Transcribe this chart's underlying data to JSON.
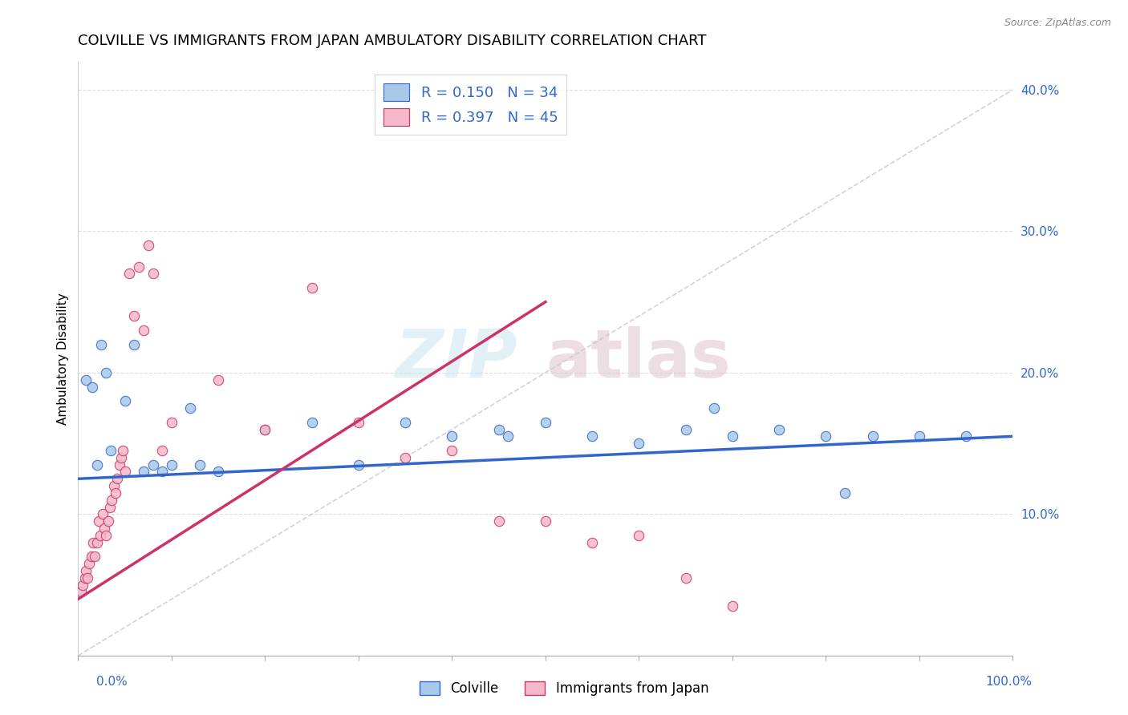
{
  "title": "COLVILLE VS IMMIGRANTS FROM JAPAN AMBULATORY DISABILITY CORRELATION CHART",
  "source": "Source: ZipAtlas.com",
  "ylabel": "Ambulatory Disability",
  "legend_label1": "Colville",
  "legend_label2": "Immigrants from Japan",
  "R1": 0.15,
  "N1": 34,
  "R2": 0.397,
  "N2": 45,
  "color_blue": "#a8c8e8",
  "color_pink": "#f4b8c8",
  "color_blue_line": "#3366cc",
  "color_pink_line": "#cc3366",
  "color_dashed_line": "#cccccc",
  "watermark_zip": "ZIP",
  "watermark_atlas": "atlas",
  "blue_points": [
    [
      0.8,
      19.5
    ],
    [
      1.5,
      19.0
    ],
    [
      2.0,
      13.5
    ],
    [
      2.5,
      22.0
    ],
    [
      3.0,
      20.0
    ],
    [
      3.5,
      14.5
    ],
    [
      5.0,
      18.0
    ],
    [
      6.0,
      22.0
    ],
    [
      7.0,
      13.0
    ],
    [
      8.0,
      13.5
    ],
    [
      9.0,
      13.0
    ],
    [
      10.0,
      13.5
    ],
    [
      12.0,
      17.5
    ],
    [
      13.0,
      13.5
    ],
    [
      15.0,
      13.0
    ],
    [
      20.0,
      16.0
    ],
    [
      25.0,
      16.5
    ],
    [
      30.0,
      13.5
    ],
    [
      35.0,
      16.5
    ],
    [
      40.0,
      15.5
    ],
    [
      45.0,
      16.0
    ],
    [
      46.0,
      15.5
    ],
    [
      50.0,
      16.5
    ],
    [
      55.0,
      15.5
    ],
    [
      60.0,
      15.0
    ],
    [
      65.0,
      16.0
    ],
    [
      68.0,
      17.5
    ],
    [
      70.0,
      15.5
    ],
    [
      75.0,
      16.0
    ],
    [
      80.0,
      15.5
    ],
    [
      82.0,
      11.5
    ],
    [
      85.0,
      15.5
    ],
    [
      90.0,
      15.5
    ],
    [
      95.0,
      15.5
    ]
  ],
  "pink_points": [
    [
      0.3,
      4.5
    ],
    [
      0.5,
      5.0
    ],
    [
      0.7,
      5.5
    ],
    [
      0.8,
      6.0
    ],
    [
      1.0,
      5.5
    ],
    [
      1.2,
      6.5
    ],
    [
      1.4,
      7.0
    ],
    [
      1.6,
      8.0
    ],
    [
      1.8,
      7.0
    ],
    [
      2.0,
      8.0
    ],
    [
      2.2,
      9.5
    ],
    [
      2.4,
      8.5
    ],
    [
      2.6,
      10.0
    ],
    [
      2.8,
      9.0
    ],
    [
      3.0,
      8.5
    ],
    [
      3.2,
      9.5
    ],
    [
      3.4,
      10.5
    ],
    [
      3.6,
      11.0
    ],
    [
      3.8,
      12.0
    ],
    [
      4.0,
      11.5
    ],
    [
      4.2,
      12.5
    ],
    [
      4.4,
      13.5
    ],
    [
      4.6,
      14.0
    ],
    [
      4.8,
      14.5
    ],
    [
      5.0,
      13.0
    ],
    [
      5.5,
      27.0
    ],
    [
      6.0,
      24.0
    ],
    [
      6.5,
      27.5
    ],
    [
      7.0,
      23.0
    ],
    [
      7.5,
      29.0
    ],
    [
      8.0,
      27.0
    ],
    [
      9.0,
      14.5
    ],
    [
      10.0,
      16.5
    ],
    [
      15.0,
      19.5
    ],
    [
      20.0,
      16.0
    ],
    [
      25.0,
      26.0
    ],
    [
      30.0,
      16.5
    ],
    [
      35.0,
      14.0
    ],
    [
      40.0,
      14.5
    ],
    [
      45.0,
      9.5
    ],
    [
      50.0,
      9.5
    ],
    [
      55.0,
      8.0
    ],
    [
      60.0,
      8.5
    ],
    [
      65.0,
      5.5
    ],
    [
      70.0,
      3.5
    ]
  ],
  "xlim": [
    0,
    100
  ],
  "ylim": [
    0,
    42
  ],
  "blue_line_start": 12.5,
  "blue_line_end": 15.5,
  "pink_line_x0": 0,
  "pink_line_y0": 4.0,
  "pink_line_x1": 50,
  "pink_line_y1": 25.0,
  "diag_x0": 0,
  "diag_y0": 0,
  "diag_x1": 100,
  "diag_y1": 40,
  "title_fontsize": 13,
  "axis_label_fontsize": 11,
  "tick_fontsize": 11,
  "legend_fontsize": 13
}
